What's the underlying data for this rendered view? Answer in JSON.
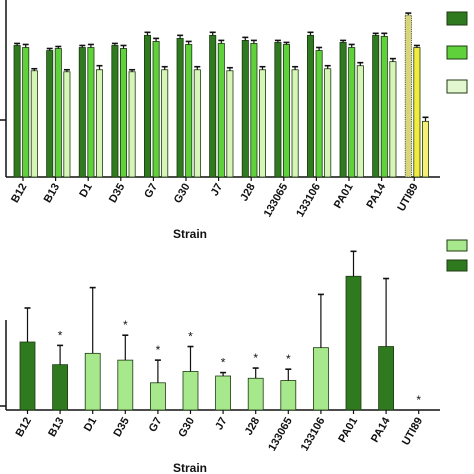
{
  "chart_data": [
    {
      "type": "bar",
      "xlabel": "Strain",
      "categories": [
        "B12",
        "B13",
        "D1",
        "D35",
        "G7",
        "G30",
        "J7",
        "J28",
        "133065",
        "133106",
        "PA01",
        "PA14",
        "UTI89"
      ],
      "series": [
        {
          "values": [
            1.3,
            1.25,
            1.28,
            1.3,
            1.4,
            1.37,
            1.4,
            1.35,
            1.33,
            1.4,
            1.33,
            1.4,
            1.6
          ],
          "errors": [
            0.02,
            0.02,
            0.02,
            0.02,
            0.03,
            0.03,
            0.03,
            0.03,
            0.02,
            0.03,
            0.02,
            0.02,
            0.02
          ]
        },
        {
          "values": [
            1.28,
            1.27,
            1.28,
            1.27,
            1.34,
            1.31,
            1.32,
            1.32,
            1.31,
            1.25,
            1.28,
            1.39,
            1.28
          ],
          "errors": [
            0.03,
            0.02,
            0.03,
            0.03,
            0.03,
            0.03,
            0.03,
            0.03,
            0.02,
            0.03,
            0.03,
            0.03,
            0.02
          ]
        },
        {
          "values": [
            1.05,
            1.04,
            1.06,
            1.04,
            1.06,
            1.06,
            1.05,
            1.06,
            1.06,
            1.07,
            1.1,
            1.14,
            0.55
          ],
          "errors": [
            0.02,
            0.02,
            0.04,
            0.02,
            0.03,
            0.03,
            0.03,
            0.03,
            0.03,
            0.03,
            0.03,
            0.03,
            0.04
          ]
        }
      ],
      "ylim": [
        0,
        1.7
      ],
      "colors": [
        "#2f7a1f",
        "#5fd13a",
        "#d6f5b6"
      ],
      "highlight_category": "UTI89",
      "highlight_colors": [
        "#d8d67a",
        "#f2ec3c",
        "#f7ee7a"
      ]
    },
    {
      "type": "bar",
      "xlabel": "Strain",
      "categories": [
        "B12",
        "B13",
        "D1",
        "D35",
        "G7",
        "G30",
        "J7",
        "J28",
        "133065",
        "133106",
        "PA01",
        "PA14",
        "UTI89"
      ],
      "values": [
        60,
        40,
        50,
        44,
        24,
        34,
        30,
        28,
        26,
        55,
        118,
        56,
        0
      ],
      "errors": [
        30,
        17,
        58,
        22,
        20,
        22,
        3,
        9,
        10,
        47,
        22,
        60,
        0
      ],
      "significance": [
        "",
        "*",
        "",
        "*",
        "*",
        "*",
        "*",
        "*",
        "*",
        "",
        "",
        "",
        "*"
      ],
      "bar_shade": [
        "dark",
        "dark",
        "light",
        "light",
        "light",
        "light",
        "light",
        "light",
        "light",
        "light",
        "dark",
        "dark",
        "light"
      ],
      "ylim": [
        0,
        150
      ],
      "colors": {
        "light": "#a8e88c",
        "dark": "#2f7a1f"
      }
    }
  ],
  "legend_swatches": {
    "top": [
      "#2f7a1f",
      "#5fd13a",
      "#e2f7cf"
    ],
    "bottom": [
      "#a8e88c",
      "#2f7a1f"
    ]
  }
}
